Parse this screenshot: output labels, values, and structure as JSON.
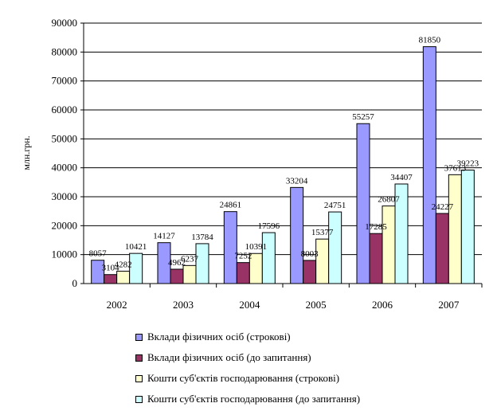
{
  "chart_data": {
    "type": "bar",
    "title": "",
    "xlabel": "",
    "ylabel": "млн.грн.",
    "ylim": [
      0,
      90000
    ],
    "yticks": [
      0,
      10000,
      20000,
      30000,
      40000,
      50000,
      60000,
      70000,
      80000,
      90000
    ],
    "grid": true,
    "legend_position": "bottom",
    "categories": [
      "2002",
      "2003",
      "2004",
      "2005",
      "2006",
      "2007"
    ],
    "series": [
      {
        "name": "Вклади фізичних осіб (строкові)",
        "color": "#9999ff",
        "values": [
          8057,
          14127,
          24861,
          33204,
          55257,
          81850
        ]
      },
      {
        "name": "Вклади фізичних осіб (до запитання)",
        "color": "#993366",
        "values": [
          3104,
          4962,
          7252,
          8003,
          17285,
          24227
        ]
      },
      {
        "name": "Кошти суб'єктів господарювання (строкові)",
        "color": "#ffffcc",
        "values": [
          4282,
          6237,
          10391,
          15377,
          26807,
          37613
        ]
      },
      {
        "name": "Кошти суб'єктів господарювання (до запитання)",
        "color": "#ccffff",
        "values": [
          10421,
          13784,
          17596,
          24751,
          34407,
          39223
        ]
      }
    ]
  }
}
